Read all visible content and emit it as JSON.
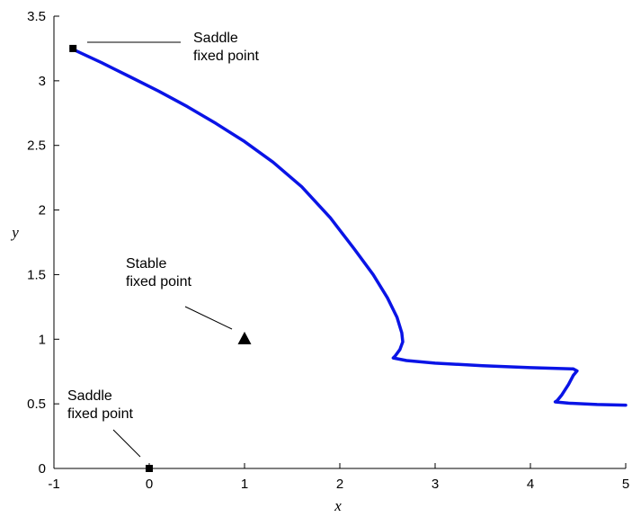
{
  "chart_data": {
    "type": "line",
    "title": "",
    "xlabel": "x",
    "ylabel": "y",
    "xlim": [
      -1,
      5
    ],
    "ylim": [
      0,
      3.5
    ],
    "xticks": [
      "-1",
      "0",
      "1",
      "2",
      "3",
      "4",
      "5"
    ],
    "yticks": [
      "0",
      "0.5",
      "1",
      "1.5",
      "2",
      "2.5",
      "3",
      "3.5"
    ],
    "grid": false,
    "colors": {
      "trajectory": "#0a14e6",
      "markers": "#000000",
      "axes": "#000000"
    },
    "series": [
      {
        "points": [
          [
            -0.82,
            3.25
          ],
          [
            -0.5,
            3.14
          ],
          [
            -0.2,
            3.03
          ],
          [
            0.1,
            2.92
          ],
          [
            0.4,
            2.8
          ],
          [
            0.7,
            2.67
          ],
          [
            1.0,
            2.53
          ],
          [
            1.3,
            2.37
          ],
          [
            1.6,
            2.18
          ],
          [
            1.9,
            1.94
          ],
          [
            2.15,
            1.7
          ],
          [
            2.35,
            1.5
          ],
          [
            2.5,
            1.32
          ],
          [
            2.6,
            1.17
          ],
          [
            2.65,
            1.05
          ],
          [
            2.66,
            0.98
          ],
          [
            2.63,
            0.92
          ],
          [
            2.58,
            0.87
          ],
          [
            2.56,
            0.855
          ],
          [
            2.7,
            0.835
          ],
          [
            3.0,
            0.815
          ],
          [
            3.5,
            0.795
          ],
          [
            4.0,
            0.78
          ],
          [
            4.45,
            0.77
          ],
          [
            4.49,
            0.755
          ],
          [
            4.45,
            0.72
          ],
          [
            4.4,
            0.65
          ],
          [
            4.33,
            0.57
          ],
          [
            4.28,
            0.525
          ],
          [
            4.26,
            0.515
          ],
          [
            4.4,
            0.505
          ],
          [
            4.7,
            0.495
          ],
          [
            5.0,
            0.49
          ]
        ]
      }
    ],
    "fixed_points": [
      {
        "label_lines": [
          "Saddle",
          "fixed point"
        ],
        "marker": "square",
        "x": -0.8,
        "y": 3.25
      },
      {
        "label_lines": [
          "Stable",
          "fixed point"
        ],
        "marker": "triangle",
        "x": 1.0,
        "y": 1.0
      },
      {
        "label_lines": [
          "Saddle",
          "fixed point"
        ],
        "marker": "square",
        "x": 0.0,
        "y": 0.0
      }
    ]
  }
}
